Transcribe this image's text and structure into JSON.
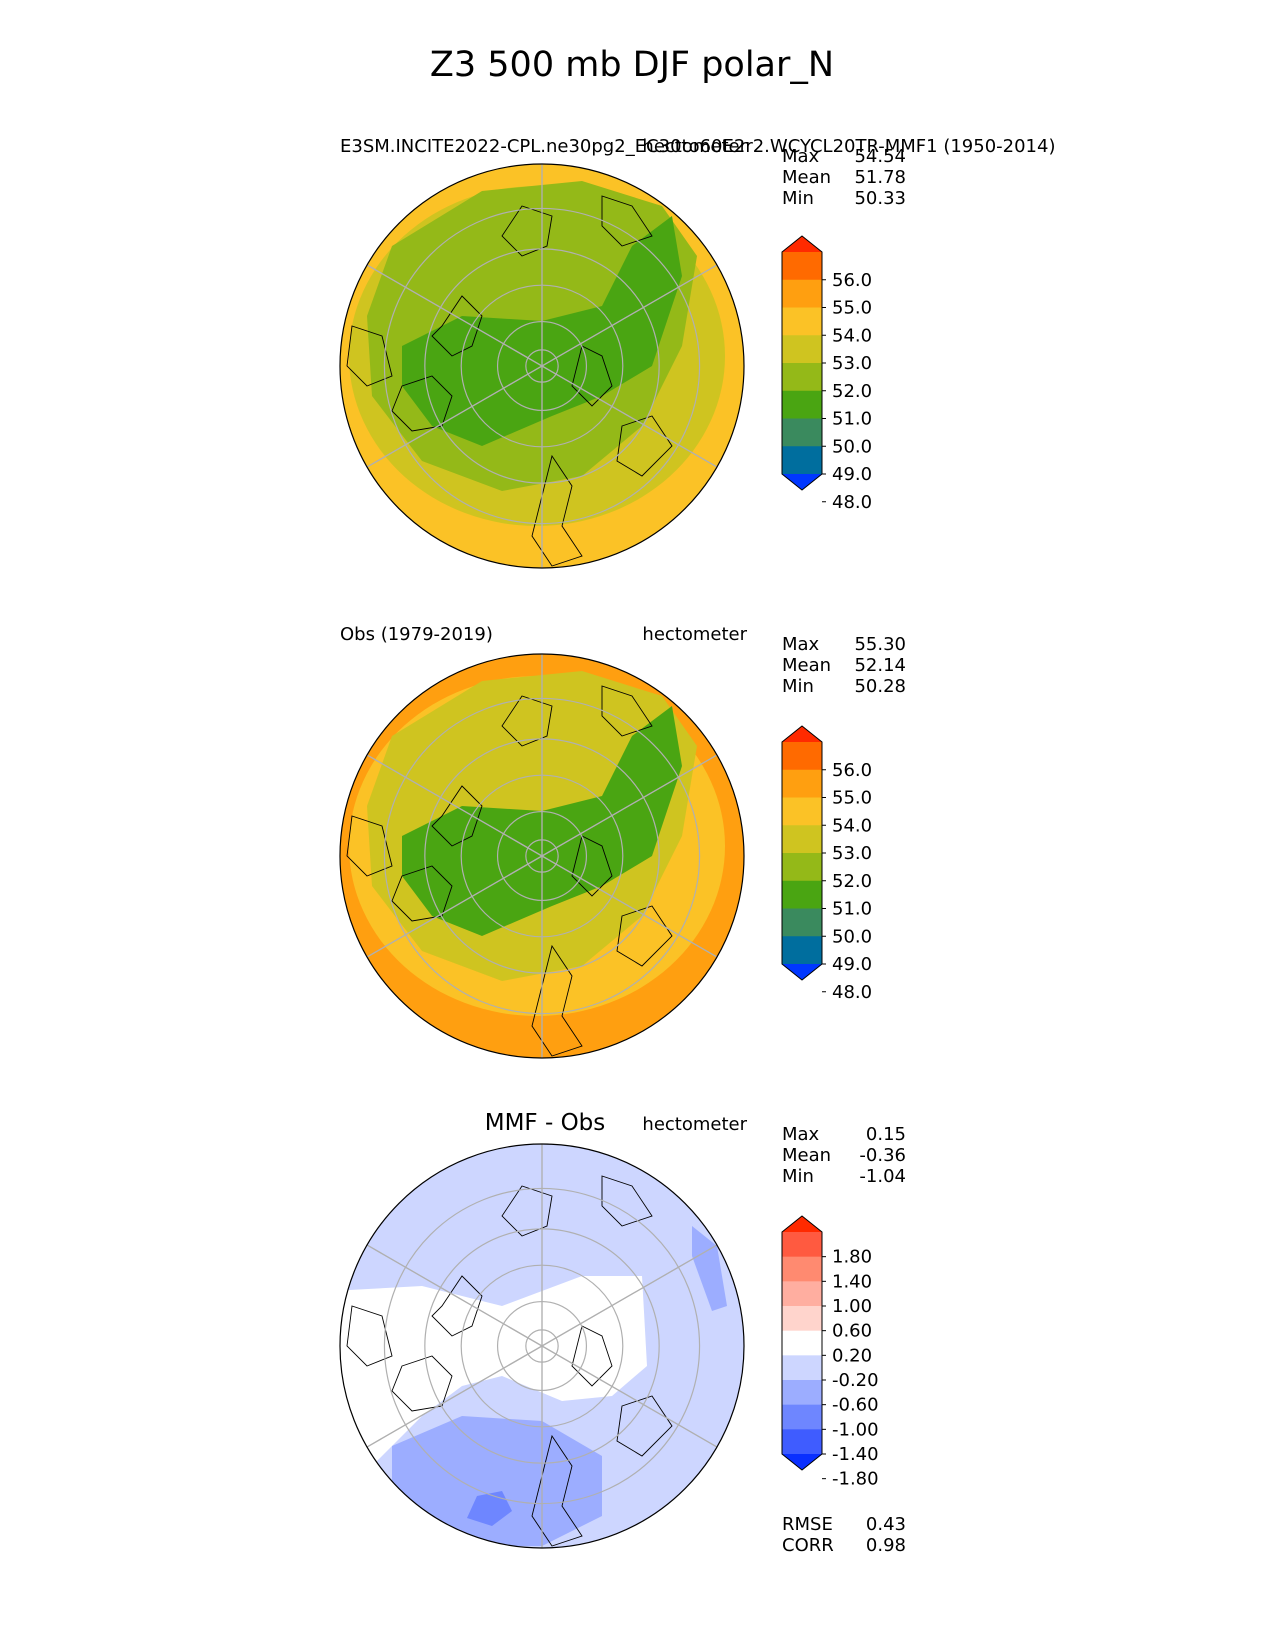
{
  "figure": {
    "title": "Z3 500 mb DJF polar_N"
  },
  "chart_data": [
    {
      "type": "heatmap",
      "panel": "test",
      "title_left": "E3SM.INCITE2022-CPL.ne30pg2_EC30to60E2r2.WCYCL20TR-MMF1 (1950-2014)",
      "title_right": "hectometer",
      "stats": [
        {
          "label": "Max",
          "value": "54.54"
        },
        {
          "label": "Mean",
          "value": "51.78"
        },
        {
          "label": "Min",
          "value": "50.33"
        }
      ],
      "colorbar": {
        "ticks": [
          "56.0",
          "55.0",
          "54.0",
          "53.0",
          "52.0",
          "51.0",
          "50.0",
          "49.0",
          "48.0"
        ],
        "colors": [
          "#ff2a00",
          "#ff6a00",
          "#ff9f10",
          "#fbc226",
          "#cfc420",
          "#94b918",
          "#4aa512",
          "#3a8a5e",
          "#006e9e",
          "#0037ff"
        ],
        "extend": "both"
      },
      "field_levels": {
        "outer": 53.5,
        "mid": 52.5,
        "inner": 51.5,
        "core": 50.7
      }
    },
    {
      "type": "heatmap",
      "panel": "reference",
      "title_left": "Obs (1979-2019)",
      "title_right": "hectometer",
      "stats": [
        {
          "label": "Max",
          "value": "55.30"
        },
        {
          "label": "Mean",
          "value": "52.14"
        },
        {
          "label": "Min",
          "value": "50.28"
        }
      ],
      "colorbar": {
        "ticks": [
          "56.0",
          "55.0",
          "54.0",
          "53.0",
          "52.0",
          "51.0",
          "50.0",
          "49.0",
          "48.0"
        ],
        "colors": [
          "#ff2a00",
          "#ff6a00",
          "#ff9f10",
          "#fbc226",
          "#cfc420",
          "#94b918",
          "#4aa512",
          "#3a8a5e",
          "#006e9e",
          "#0037ff"
        ],
        "extend": "both"
      },
      "field_levels": {
        "outer": 54.5,
        "mid": 53.5,
        "inner": 52.5,
        "core": 50.8
      }
    },
    {
      "type": "heatmap",
      "panel": "difference",
      "title_center": "MMF - Obs",
      "title_right": "hectometer",
      "stats": [
        {
          "label": "Max",
          "value": "0.15"
        },
        {
          "label": "Mean",
          "value": "-0.36"
        },
        {
          "label": "Min",
          "value": "-1.04"
        }
      ],
      "colorbar": {
        "ticks": [
          "1.80",
          "1.40",
          "1.00",
          "0.60",
          "0.20",
          "-0.20",
          "-0.60",
          "-1.00",
          "-1.40",
          "-1.80"
        ],
        "colors": [
          "#ff2a00",
          "#ff5a40",
          "#ff8a70",
          "#ffaea0",
          "#ffd4cc",
          "#ffffff",
          "#cdd6ff",
          "#9cadff",
          "#6e86ff",
          "#3f5cff",
          "#0a2fff"
        ],
        "extend": "both"
      },
      "field_levels": {
        "background": -0.4,
        "band": 0.0,
        "pacific": -0.8,
        "spot": -1.04
      },
      "metrics": [
        {
          "label": "RMSE",
          "value": "0.43"
        },
        {
          "label": "CORR",
          "value": "0.98"
        }
      ]
    }
  ]
}
